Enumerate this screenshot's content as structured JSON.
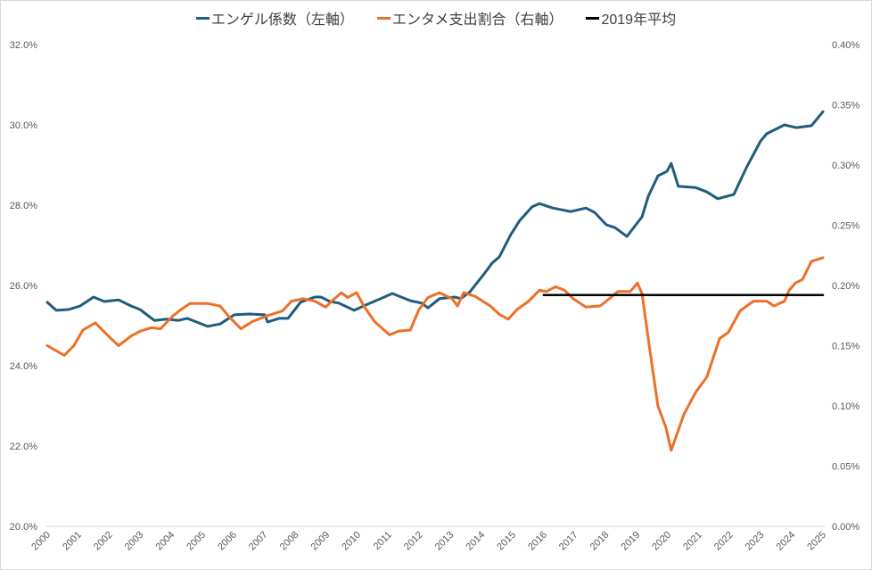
{
  "chart_data": {
    "type": "line",
    "legend_position": "top",
    "grid": false,
    "x_tick_labels": [
      "2000",
      "2001",
      "2002",
      "2003",
      "2004",
      "2005",
      "2006",
      "2007",
      "2008",
      "2009",
      "2010",
      "2011",
      "2012",
      "2013",
      "2014",
      "2015",
      "2016",
      "2017",
      "2018",
      "2019",
      "2020",
      "2021",
      "2022",
      "2023",
      "2024",
      "2025"
    ],
    "xlim": [
      2000,
      2025
    ],
    "y_left": {
      "ylim": [
        20,
        32
      ],
      "tick_labels": [
        "20.0%",
        "22.0%",
        "24.0%",
        "26.0%",
        "28.0%",
        "30.0%",
        "32.0%"
      ]
    },
    "y_right": {
      "ylim": [
        0,
        0.4
      ],
      "tick_labels": [
        "0.00%",
        "0.05%",
        "0.10%",
        "0.15%",
        "0.20%",
        "0.25%",
        "0.30%",
        "0.35%",
        "0.40%"
      ]
    },
    "series": [
      {
        "name": "エンゲル係数（左軸）",
        "axis": "left",
        "color": "#1f5c7d",
        "x": [
          2000.0,
          2000.29,
          2000.69,
          2001.06,
          2001.49,
          2001.84,
          2002.3,
          2002.7,
          2002.99,
          2003.45,
          2003.85,
          2004.22,
          2004.51,
          2005.17,
          2005.57,
          2006.03,
          2006.52,
          2007.01,
          2007.1,
          2007.47,
          2007.76,
          2008.16,
          2008.62,
          2008.82,
          2009.11,
          2009.4,
          2009.89,
          2010.26,
          2010.75,
          2011.12,
          2011.7,
          2012.07,
          2012.27,
          2012.64,
          2013.13,
          2013.33,
          2013.62,
          2014.08,
          2014.34,
          2014.57,
          2014.94,
          2015.23,
          2015.63,
          2015.86,
          2016.29,
          2016.87,
          2017.36,
          2017.64,
          2018.02,
          2018.3,
          2018.68,
          2019.17,
          2019.37,
          2019.68,
          2019.97,
          2020.11,
          2020.34,
          2020.89,
          2021.26,
          2021.61,
          2022.13,
          2022.53,
          2022.99,
          2023.19,
          2023.76,
          2024.14,
          2024.63,
          2025.0
        ],
        "y": [
          25.58,
          25.38,
          25.4,
          25.49,
          25.71,
          25.6,
          25.64,
          25.49,
          25.4,
          25.13,
          25.16,
          25.13,
          25.18,
          24.98,
          25.04,
          25.27,
          25.29,
          25.27,
          25.09,
          25.18,
          25.18,
          25.58,
          25.71,
          25.71,
          25.6,
          25.56,
          25.38,
          25.51,
          25.67,
          25.8,
          25.62,
          25.56,
          25.44,
          25.67,
          25.71,
          25.67,
          25.84,
          26.29,
          26.56,
          26.71,
          27.27,
          27.62,
          27.96,
          28.04,
          27.93,
          27.84,
          27.93,
          27.82,
          27.51,
          27.44,
          27.22,
          27.71,
          28.22,
          28.73,
          28.84,
          29.04,
          28.47,
          28.44,
          28.33,
          28.16,
          28.27,
          28.93,
          29.6,
          29.78,
          30.0,
          29.93,
          29.98,
          30.33
        ]
      },
      {
        "name": "エンタメ支出割合（右軸）",
        "axis": "right",
        "color": "#ed7028",
        "x": [
          2000.0,
          2000.55,
          2000.86,
          2001.15,
          2001.55,
          2001.93,
          2002.3,
          2002.7,
          2002.99,
          2003.36,
          2003.65,
          2004.02,
          2004.31,
          2004.6,
          2005.17,
          2005.57,
          2005.86,
          2006.24,
          2006.61,
          2007.1,
          2007.59,
          2007.87,
          2008.25,
          2008.62,
          2008.97,
          2009.17,
          2009.48,
          2009.68,
          2009.97,
          2010.2,
          2010.55,
          2011.03,
          2011.32,
          2011.7,
          2011.98,
          2012.27,
          2012.64,
          2013.05,
          2013.22,
          2013.42,
          2013.79,
          2014.28,
          2014.57,
          2014.86,
          2015.14,
          2015.52,
          2015.86,
          2016.09,
          2016.38,
          2016.67,
          2016.95,
          2017.36,
          2017.82,
          2018.16,
          2018.39,
          2018.79,
          2019.02,
          2019.17,
          2019.45,
          2019.68,
          2019.94,
          2020.11,
          2020.52,
          2020.89,
          2021.26,
          2021.67,
          2021.95,
          2022.33,
          2022.76,
          2023.19,
          2023.42,
          2023.76,
          2023.91,
          2024.11,
          2024.34,
          2024.63,
          2025.0
        ],
        "y": [
          0.15,
          0.142,
          0.15,
          0.163,
          0.169,
          0.159,
          0.15,
          0.158,
          0.162,
          0.165,
          0.164,
          0.174,
          0.18,
          0.185,
          0.185,
          0.183,
          0.174,
          0.164,
          0.17,
          0.175,
          0.179,
          0.187,
          0.189,
          0.187,
          0.182,
          0.187,
          0.194,
          0.19,
          0.194,
          0.183,
          0.17,
          0.159,
          0.162,
          0.163,
          0.18,
          0.19,
          0.194,
          0.189,
          0.183,
          0.194,
          0.191,
          0.183,
          0.176,
          0.172,
          0.18,
          0.187,
          0.196,
          0.195,
          0.199,
          0.196,
          0.189,
          0.182,
          0.183,
          0.19,
          0.195,
          0.195,
          0.202,
          0.193,
          0.141,
          0.1,
          0.082,
          0.063,
          0.093,
          0.111,
          0.124,
          0.156,
          0.161,
          0.179,
          0.187,
          0.187,
          0.183,
          0.187,
          0.196,
          0.202,
          0.205,
          0.22,
          0.223
        ]
      },
      {
        "name": "2019年平均",
        "axis": "right",
        "color": "#000000",
        "x": [
          2016.0,
          2025.0
        ],
        "y": [
          0.192,
          0.192
        ]
      }
    ]
  }
}
